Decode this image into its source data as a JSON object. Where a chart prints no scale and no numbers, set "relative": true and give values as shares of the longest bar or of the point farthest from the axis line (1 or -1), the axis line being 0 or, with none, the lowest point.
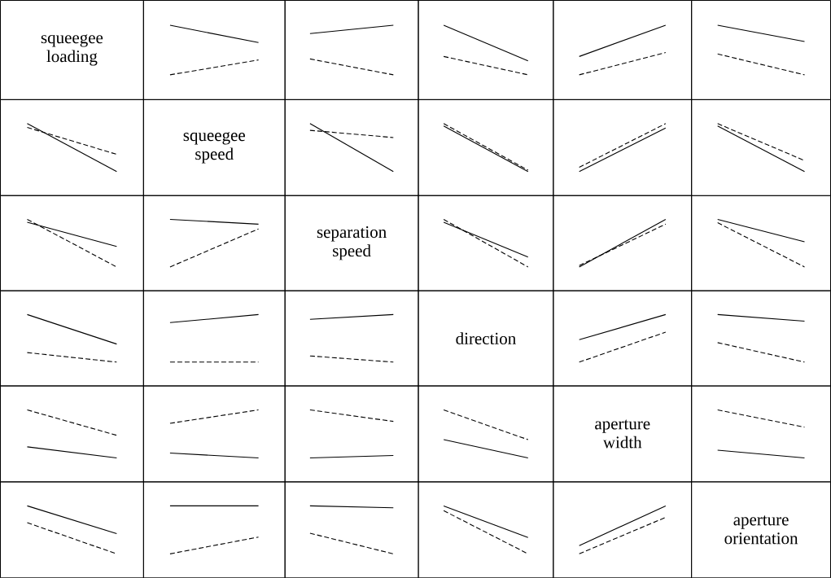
{
  "chart_data": [
    {
      "type": "other",
      "title": "squeegee loading"
    },
    {
      "type": "line",
      "relative": true,
      "categories": [
        null,
        null
      ],
      "series": [
        {
          "color": "#000000",
          "line_style": "solid",
          "values": [
            1,
            0.65
          ]
        },
        {
          "color": "#000000",
          "line_style": "dashed",
          "values": [
            0,
            0.3
          ]
        }
      ]
    },
    {
      "type": "line",
      "relative": true,
      "categories": [
        null,
        null
      ],
      "series": [
        {
          "color": "#000000",
          "line_style": "solid",
          "values": [
            0.83,
            1
          ]
        },
        {
          "color": "#000000",
          "line_style": "dashed",
          "values": [
            0.32,
            0
          ]
        }
      ]
    },
    {
      "type": "line",
      "relative": true,
      "categories": [
        null,
        null
      ],
      "series": [
        {
          "color": "#000000",
          "line_style": "solid",
          "values": [
            1,
            0.28
          ]
        },
        {
          "color": "#000000",
          "line_style": "dashed",
          "values": [
            0.37,
            0
          ]
        }
      ]
    },
    {
      "type": "line",
      "relative": true,
      "categories": [
        null,
        null
      ],
      "series": [
        {
          "color": "#000000",
          "line_style": "solid",
          "values": [
            0.37,
            1
          ]
        },
        {
          "color": "#000000",
          "line_style": "dashed",
          "values": [
            0,
            0.45
          ]
        }
      ]
    },
    {
      "type": "line",
      "relative": true,
      "categories": [
        null,
        null
      ],
      "series": [
        {
          "color": "#000000",
          "line_style": "solid",
          "values": [
            1,
            0.67
          ]
        },
        {
          "color": "#000000",
          "line_style": "dashed",
          "values": [
            0.42,
            0
          ]
        }
      ]
    },
    {
      "type": "line",
      "relative": true,
      "categories": [
        null,
        null
      ],
      "series": [
        {
          "color": "#000000",
          "line_style": "solid",
          "values": [
            1,
            0
          ]
        },
        {
          "color": "#000000",
          "line_style": "dashed",
          "values": [
            0.92,
            0.36
          ]
        }
      ]
    },
    {
      "type": "other",
      "title": "squeegee speed"
    },
    {
      "type": "line",
      "relative": true,
      "categories": [
        null,
        null
      ],
      "series": [
        {
          "color": "#000000",
          "line_style": "solid",
          "values": [
            1,
            0
          ]
        },
        {
          "color": "#000000",
          "line_style": "dashed",
          "values": [
            0.86,
            0.71
          ]
        }
      ]
    },
    {
      "type": "line",
      "relative": true,
      "categories": [
        null,
        null
      ],
      "series": [
        {
          "color": "#000000",
          "line_style": "solid",
          "values": [
            0.95,
            0
          ]
        },
        {
          "color": "#000000",
          "line_style": "dashed",
          "values": [
            1,
            0.03
          ]
        }
      ]
    },
    {
      "type": "line",
      "relative": true,
      "categories": [
        null,
        null
      ],
      "series": [
        {
          "color": "#000000",
          "line_style": "solid",
          "values": [
            0,
            0.91
          ]
        },
        {
          "color": "#000000",
          "line_style": "dashed",
          "values": [
            0.09,
            1
          ]
        }
      ]
    },
    {
      "type": "line",
      "relative": true,
      "categories": [
        null,
        null
      ],
      "series": [
        {
          "color": "#000000",
          "line_style": "solid",
          "values": [
            0.95,
            0
          ]
        },
        {
          "color": "#000000",
          "line_style": "dashed",
          "values": [
            1,
            0.23
          ]
        }
      ]
    },
    {
      "type": "line",
      "relative": true,
      "categories": [
        null,
        null
      ],
      "series": [
        {
          "color": "#000000",
          "line_style": "solid",
          "values": [
            0.94,
            0.43
          ]
        },
        {
          "color": "#000000",
          "line_style": "dashed",
          "values": [
            1,
            0
          ]
        }
      ]
    },
    {
      "type": "line",
      "relative": true,
      "categories": [
        null,
        null
      ],
      "series": [
        {
          "color": "#000000",
          "line_style": "solid",
          "values": [
            1,
            0.9
          ]
        },
        {
          "color": "#000000",
          "line_style": "dashed",
          "values": [
            0,
            0.8
          ]
        }
      ]
    },
    {
      "type": "other",
      "title": "separation speed"
    },
    {
      "type": "line",
      "relative": true,
      "categories": [
        null,
        null
      ],
      "series": [
        {
          "color": "#000000",
          "line_style": "solid",
          "values": [
            0.94,
            0.21
          ]
        },
        {
          "color": "#000000",
          "line_style": "dashed",
          "values": [
            1,
            0
          ]
        }
      ]
    },
    {
      "type": "line",
      "relative": true,
      "categories": [
        null,
        null
      ],
      "series": [
        {
          "color": "#000000",
          "line_style": "solid",
          "values": [
            0,
            1
          ]
        },
        {
          "color": "#000000",
          "line_style": "dashed",
          "values": [
            0.03,
            0.9
          ]
        }
      ]
    },
    {
      "type": "line",
      "relative": true,
      "categories": [
        null,
        null
      ],
      "series": [
        {
          "color": "#000000",
          "line_style": "solid",
          "values": [
            1,
            0.53
          ]
        },
        {
          "color": "#000000",
          "line_style": "dashed",
          "values": [
            0.93,
            0
          ]
        }
      ]
    },
    {
      "type": "line",
      "relative": true,
      "categories": [
        null,
        null
      ],
      "series": [
        {
          "color": "#000000",
          "line_style": "solid",
          "values": [
            1,
            0.38
          ]
        },
        {
          "color": "#000000",
          "line_style": "dashed",
          "values": [
            0.2,
            0
          ]
        }
      ]
    },
    {
      "type": "line",
      "relative": true,
      "categories": [
        null,
        null
      ],
      "series": [
        {
          "color": "#000000",
          "line_style": "solid",
          "values": [
            0.83,
            1
          ]
        },
        {
          "color": "#000000",
          "line_style": "dashed",
          "values": [
            0,
            0
          ]
        }
      ]
    },
    {
      "type": "line",
      "relative": true,
      "categories": [
        null,
        null
      ],
      "series": [
        {
          "color": "#000000",
          "line_style": "solid",
          "values": [
            0.9,
            1
          ]
        },
        {
          "color": "#000000",
          "line_style": "dashed",
          "values": [
            0.13,
            0
          ]
        }
      ]
    },
    {
      "type": "other",
      "title": "direction"
    },
    {
      "type": "line",
      "relative": true,
      "categories": [
        null,
        null
      ],
      "series": [
        {
          "color": "#000000",
          "line_style": "solid",
          "values": [
            0.47,
            1
          ]
        },
        {
          "color": "#000000",
          "line_style": "dashed",
          "values": [
            0,
            0.63
          ]
        }
      ]
    },
    {
      "type": "line",
      "relative": true,
      "categories": [
        null,
        null
      ],
      "series": [
        {
          "color": "#000000",
          "line_style": "solid",
          "values": [
            1,
            0.86
          ]
        },
        {
          "color": "#000000",
          "line_style": "dashed",
          "values": [
            0.41,
            0
          ]
        }
      ]
    },
    {
      "type": "line",
      "relative": true,
      "categories": [
        null,
        null
      ],
      "series": [
        {
          "color": "#000000",
          "line_style": "solid",
          "values": [
            0.23,
            0
          ]
        },
        {
          "color": "#000000",
          "line_style": "dashed",
          "values": [
            1,
            0.47
          ]
        }
      ]
    },
    {
      "type": "line",
      "relative": true,
      "categories": [
        null,
        null
      ],
      "series": [
        {
          "color": "#000000",
          "line_style": "solid",
          "values": [
            0.1,
            0
          ]
        },
        {
          "color": "#000000",
          "line_style": "dashed",
          "values": [
            0.72,
            1
          ]
        }
      ]
    },
    {
      "type": "line",
      "relative": true,
      "categories": [
        null,
        null
      ],
      "series": [
        {
          "color": "#000000",
          "line_style": "solid",
          "values": [
            0,
            0.05
          ]
        },
        {
          "color": "#000000",
          "line_style": "dashed",
          "values": [
            1,
            0.76
          ]
        }
      ]
    },
    {
      "type": "line",
      "relative": true,
      "categories": [
        null,
        null
      ],
      "series": [
        {
          "color": "#000000",
          "line_style": "solid",
          "values": [
            0.38,
            0
          ]
        },
        {
          "color": "#000000",
          "line_style": "dashed",
          "values": [
            1,
            0.38
          ]
        }
      ]
    },
    {
      "type": "other",
      "title": "aperture width"
    },
    {
      "type": "line",
      "relative": true,
      "categories": [
        null,
        null
      ],
      "series": [
        {
          "color": "#000000",
          "line_style": "solid",
          "values": [
            0.16,
            0
          ]
        },
        {
          "color": "#000000",
          "line_style": "dashed",
          "values": [
            1,
            0.64
          ]
        }
      ]
    },
    {
      "type": "line",
      "relative": true,
      "categories": [
        null,
        null
      ],
      "series": [
        {
          "color": "#000000",
          "line_style": "solid",
          "values": [
            1,
            0.42
          ]
        },
        {
          "color": "#000000",
          "line_style": "dashed",
          "values": [
            0.65,
            0
          ]
        }
      ]
    },
    {
      "type": "line",
      "relative": true,
      "categories": [
        null,
        null
      ],
      "series": [
        {
          "color": "#000000",
          "line_style": "solid",
          "values": [
            1,
            1
          ]
        },
        {
          "color": "#000000",
          "line_style": "dashed",
          "values": [
            0,
            0.35
          ]
        }
      ]
    },
    {
      "type": "line",
      "relative": true,
      "categories": [
        null,
        null
      ],
      "series": [
        {
          "color": "#000000",
          "line_style": "solid",
          "values": [
            1,
            0.96
          ]
        },
        {
          "color": "#000000",
          "line_style": "dashed",
          "values": [
            0.43,
            0
          ]
        }
      ]
    },
    {
      "type": "line",
      "relative": true,
      "categories": [
        null,
        null
      ],
      "series": [
        {
          "color": "#000000",
          "line_style": "solid",
          "values": [
            1,
            0.34
          ]
        },
        {
          "color": "#000000",
          "line_style": "dashed",
          "values": [
            0.9,
            0
          ]
        }
      ]
    },
    {
      "type": "line",
      "relative": true,
      "categories": [
        null,
        null
      ],
      "series": [
        {
          "color": "#000000",
          "line_style": "solid",
          "values": [
            0.17,
            1
          ]
        },
        {
          "color": "#000000",
          "line_style": "dashed",
          "values": [
            0,
            0.76
          ]
        }
      ]
    },
    {
      "type": "other",
      "title": "aperture orientation"
    }
  ]
}
